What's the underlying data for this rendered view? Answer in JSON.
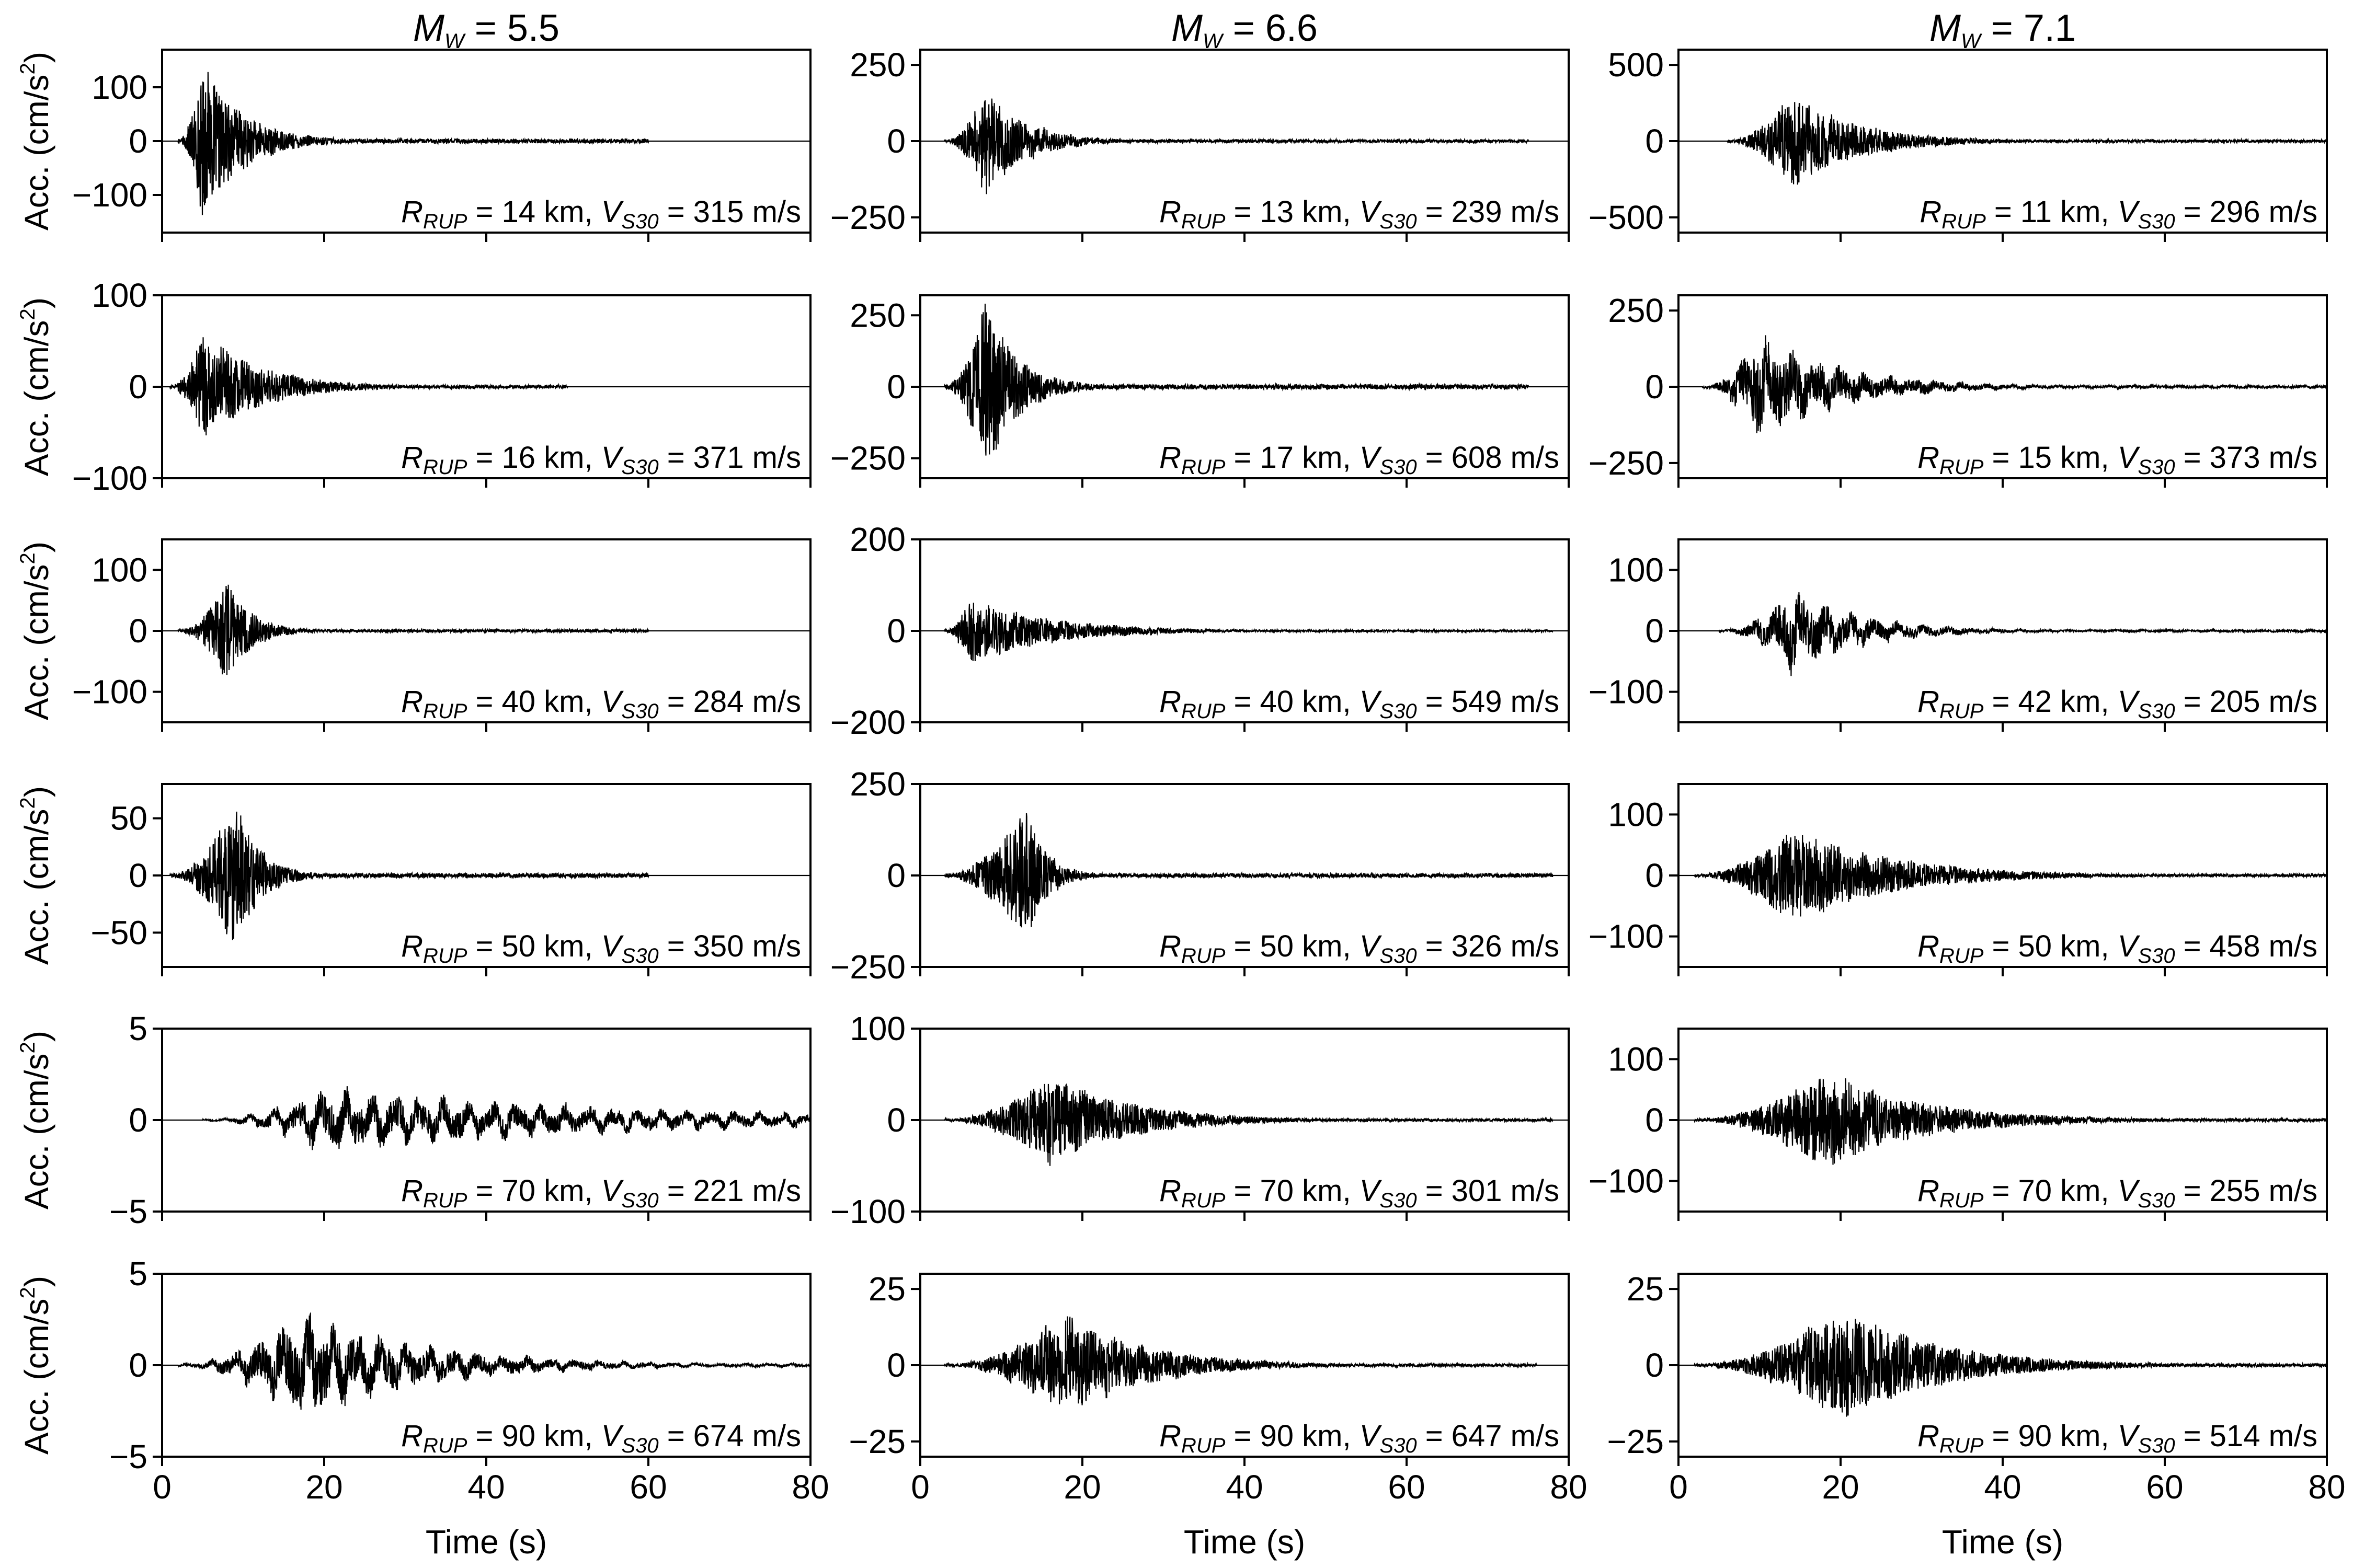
{
  "chart_data": {
    "type": "line",
    "description": "Acceleration time histories grid",
    "xlabel": "Time (s)",
    "ylabel": "Acc. (cm/s2)",
    "ylabel_main": "Acc. (cm/s",
    "ylabel_sup": "2",
    "ylabel_end": ")",
    "xlim": [
      0,
      80
    ],
    "xticks": [
      "0",
      "20",
      "40",
      "60",
      "80"
    ],
    "annotation_labels": {
      "r": "R",
      "r_sub": "RUP",
      "v": "V",
      "v_sub": "S30"
    },
    "columns": [
      {
        "title": "M",
        "title_sub": "W",
        "title_value": " = 5.5",
        "magnitude": 5.5
      },
      {
        "title": "M",
        "title_sub": "W",
        "title_value": " = 6.6",
        "magnitude": 6.6
      },
      {
        "title": "M",
        "title_sub": "W",
        "title_value": " = 7.1",
        "magnitude": 7.1
      }
    ],
    "panels": [
      {
        "row": 0,
        "col": 0,
        "r_rup": "14",
        "vs30": "315",
        "ylim": [
          -170,
          170
        ],
        "yticks": [
          "100",
          "0",
          "−100"
        ],
        "ytick_values": [
          100,
          0,
          -100
        ],
        "peak": 160,
        "onset": 2,
        "peak_t": 5,
        "duration": 60,
        "decay": 5,
        "lowfreq": 0.1
      },
      {
        "row": 0,
        "col": 1,
        "r_rup": "13",
        "vs30": "239",
        "ylim": [
          -300,
          300
        ],
        "yticks": [
          "250",
          "0",
          "−250"
        ],
        "ytick_values": [
          250,
          0,
          -250
        ],
        "peak": 220,
        "onset": 3,
        "peak_t": 8,
        "duration": 75,
        "decay": 5,
        "lowfreq": 0.2
      },
      {
        "row": 0,
        "col": 2,
        "r_rup": "11",
        "vs30": "296",
        "ylim": [
          -600,
          600
        ],
        "yticks": [
          "500",
          "0",
          "−500"
        ],
        "ytick_values": [
          500,
          0,
          -500
        ],
        "peak": 350,
        "onset": 6,
        "peak_t": 14,
        "duration": 80,
        "decay": 8,
        "lowfreq": 0.1
      },
      {
        "row": 1,
        "col": 0,
        "r_rup": "16",
        "vs30": "371",
        "ylim": [
          -100,
          100
        ],
        "yticks": [
          "100",
          "0",
          "−100"
        ],
        "ytick_values": [
          100,
          0,
          -100
        ],
        "peak": 70,
        "onset": 1,
        "peak_t": 5,
        "duration": 50,
        "decay": 7,
        "lowfreq": 0.1
      },
      {
        "row": 1,
        "col": 1,
        "r_rup": "17",
        "vs30": "608",
        "ylim": [
          -320,
          320
        ],
        "yticks": [
          "250",
          "0",
          "−250"
        ],
        "ytick_values": [
          250,
          0,
          -250
        ],
        "peak": 330,
        "onset": 3,
        "peak_t": 8,
        "duration": 75,
        "decay": 4,
        "lowfreq": 0.1
      },
      {
        "row": 1,
        "col": 2,
        "r_rup": "15",
        "vs30": "373",
        "ylim": [
          -300,
          300
        ],
        "yticks": [
          "250",
          "0",
          "−250"
        ],
        "ytick_values": [
          250,
          0,
          -250
        ],
        "peak": 220,
        "onset": 3,
        "peak_t": 10,
        "duration": 80,
        "decay": 10,
        "lowfreq": 0.35
      },
      {
        "row": 2,
        "col": 0,
        "r_rup": "40",
        "vs30": "284",
        "ylim": [
          -150,
          150
        ],
        "yticks": [
          "100",
          "0",
          "−100"
        ],
        "ytick_values": [
          100,
          0,
          -100
        ],
        "peak": 95,
        "onset": 2,
        "peak_t": 8,
        "duration": 60,
        "decay": 3,
        "lowfreq": 0.1
      },
      {
        "row": 2,
        "col": 1,
        "r_rup": "40",
        "vs30": "549",
        "ylim": [
          -200,
          200
        ],
        "yticks": [
          "200",
          "0",
          "−200"
        ],
        "ytick_values": [
          200,
          0,
          -200
        ],
        "peak": 85,
        "onset": 3,
        "peak_t": 6,
        "duration": 78,
        "decay": 10,
        "lowfreq": 0.15
      },
      {
        "row": 2,
        "col": 2,
        "r_rup": "42",
        "vs30": "205",
        "ylim": [
          -150,
          150
        ],
        "yticks": [
          "100",
          "0",
          "−100"
        ],
        "ytick_values": [
          100,
          0,
          -100
        ],
        "peak": 85,
        "onset": 5,
        "peak_t": 14,
        "duration": 80,
        "decay": 9,
        "lowfreq": 0.4
      },
      {
        "row": 3,
        "col": 0,
        "r_rup": "50",
        "vs30": "350",
        "ylim": [
          -80,
          80
        ],
        "yticks": [
          "50",
          "0",
          "−50"
        ],
        "ytick_values": [
          50,
          0,
          -50
        ],
        "peak": 75,
        "onset": 1,
        "peak_t": 9,
        "duration": 60,
        "decay": 3,
        "lowfreq": 0.1
      },
      {
        "row": 3,
        "col": 1,
        "r_rup": "50",
        "vs30": "326",
        "ylim": [
          -250,
          250
        ],
        "yticks": [
          "250",
          "0",
          "−250"
        ],
        "ytick_values": [
          250,
          0,
          -250
        ],
        "peak": 220,
        "onset": 3,
        "peak_t": 13,
        "duration": 78,
        "decay": 2.5,
        "lowfreq": 0.1
      },
      {
        "row": 3,
        "col": 2,
        "r_rup": "50",
        "vs30": "458",
        "ylim": [
          -150,
          150
        ],
        "yticks": [
          "100",
          "0",
          "−100"
        ],
        "ytick_values": [
          100,
          0,
          -100
        ],
        "peak": 90,
        "onset": 2,
        "peak_t": 14,
        "duration": 80,
        "decay": 12,
        "lowfreq": 0.1
      },
      {
        "row": 4,
        "col": 0,
        "r_rup": "70",
        "vs30": "221",
        "ylim": [
          -5,
          5
        ],
        "yticks": [
          "5",
          "0",
          "−5"
        ],
        "ytick_values": [
          5,
          0,
          -5
        ],
        "peak": 2.2,
        "onset": 5,
        "peak_t": 20,
        "duration": 80,
        "decay": 40,
        "lowfreq": 0.5
      },
      {
        "row": 4,
        "col": 1,
        "r_rup": "70",
        "vs30": "301",
        "ylim": [
          -100,
          100
        ],
        "yticks": [
          "100",
          "0",
          "−100"
        ],
        "ytick_values": [
          100,
          0,
          -100
        ],
        "peak": 55,
        "onset": 3,
        "peak_t": 16,
        "duration": 78,
        "decay": 10,
        "lowfreq": 0.1
      },
      {
        "row": 4,
        "col": 2,
        "r_rup": "70",
        "vs30": "255",
        "ylim": [
          -150,
          150
        ],
        "yticks": [
          "100",
          "0",
          "−100"
        ],
        "ytick_values": [
          100,
          0,
          -100
        ],
        "peak": 90,
        "onset": 2,
        "peak_t": 18,
        "duration": 80,
        "decay": 12,
        "lowfreq": 0.1
      },
      {
        "row": 5,
        "col": 0,
        "r_rup": "90",
        "vs30": "674",
        "ylim": [
          -5,
          5
        ],
        "yticks": [
          "5",
          "0",
          "−5"
        ],
        "ytick_values": [
          5,
          0,
          -5
        ],
        "peak": 3.8,
        "onset": 2,
        "peak_t": 17,
        "duration": 80,
        "decay": 15,
        "lowfreq": 0.45
      },
      {
        "row": 5,
        "col": 1,
        "r_rup": "90",
        "vs30": "647",
        "ylim": [
          -30,
          30
        ],
        "yticks": [
          "25",
          "0",
          "−25"
        ],
        "ytick_values": [
          25,
          0,
          -25
        ],
        "peak": 20,
        "onset": 3,
        "peak_t": 18,
        "duration": 76,
        "decay": 10,
        "lowfreq": 0.2
      },
      {
        "row": 5,
        "col": 2,
        "r_rup": "90",
        "vs30": "514",
        "ylim": [
          -30,
          30
        ],
        "yticks": [
          "25",
          "0",
          "−25"
        ],
        "ytick_values": [
          25,
          0,
          -25
        ],
        "peak": 21,
        "onset": 2,
        "peak_t": 20,
        "duration": 80,
        "decay": 12,
        "lowfreq": 0.1
      }
    ]
  }
}
